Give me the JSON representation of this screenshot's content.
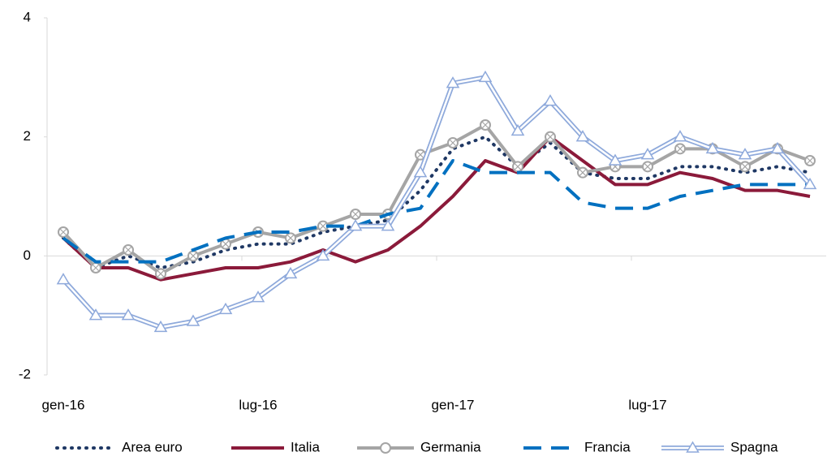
{
  "chart_data": {
    "type": "line",
    "categories": [
      "gen-16",
      null,
      null,
      null,
      null,
      null,
      "lug-16",
      null,
      null,
      null,
      null,
      null,
      "gen-17",
      null,
      null,
      null,
      null,
      null,
      "lug-17",
      null,
      null,
      null,
      null,
      null
    ],
    "series": [
      {
        "name": "Area euro",
        "color": "#1f3864",
        "dash": "dotted",
        "line": "single",
        "marker": "none",
        "values": [
          0.3,
          -0.2,
          0.0,
          -0.2,
          -0.1,
          0.1,
          0.2,
          0.2,
          0.4,
          0.5,
          0.6,
          1.1,
          1.8,
          2.0,
          1.5,
          1.9,
          1.4,
          1.3,
          1.3,
          1.5,
          1.5,
          1.4,
          1.5,
          1.4
        ]
      },
      {
        "name": "Italia",
        "color": "#8b1a3a",
        "dash": "solid",
        "line": "single",
        "marker": "none",
        "values": [
          0.3,
          -0.2,
          -0.2,
          -0.4,
          -0.3,
          -0.2,
          -0.2,
          -0.1,
          0.1,
          -0.1,
          0.1,
          0.5,
          1.0,
          1.6,
          1.4,
          2.0,
          1.6,
          1.2,
          1.2,
          1.4,
          1.3,
          1.1,
          1.1,
          1.0
        ]
      },
      {
        "name": "Germania",
        "color": "#a5a5a5",
        "dash": "solid",
        "line": "single",
        "marker": "circle",
        "values": [
          0.4,
          -0.2,
          0.1,
          -0.3,
          0.0,
          0.2,
          0.4,
          0.3,
          0.5,
          0.7,
          0.7,
          1.7,
          1.9,
          2.2,
          1.5,
          2.0,
          1.4,
          1.5,
          1.5,
          1.8,
          1.8,
          1.5,
          1.8,
          1.6
        ]
      },
      {
        "name": "Francia",
        "color": "#0070c0",
        "dash": "dashed",
        "line": "single",
        "marker": "none",
        "values": [
          0.3,
          -0.1,
          -0.1,
          -0.1,
          0.1,
          0.3,
          0.4,
          0.4,
          0.5,
          0.5,
          0.7,
          0.8,
          1.6,
          1.4,
          1.4,
          1.4,
          0.9,
          0.8,
          0.8,
          1.0,
          1.1,
          1.2,
          1.2,
          1.2
        ]
      },
      {
        "name": "Spagna",
        "color": "#8ea9db",
        "dash": "solid",
        "line": "double",
        "marker": "triangle",
        "values": [
          -0.4,
          -1.0,
          -1.0,
          -1.2,
          -1.1,
          -0.9,
          -0.7,
          -0.3,
          0.0,
          0.5,
          0.5,
          1.4,
          2.9,
          3.0,
          2.1,
          2.6,
          2.0,
          1.6,
          1.7,
          2.0,
          1.8,
          1.7,
          1.8,
          1.2
        ]
      }
    ],
    "ylim": [
      -2,
      4
    ],
    "yticks": [
      -2,
      0,
      2,
      4
    ],
    "grid": false,
    "legend": "bottom"
  }
}
